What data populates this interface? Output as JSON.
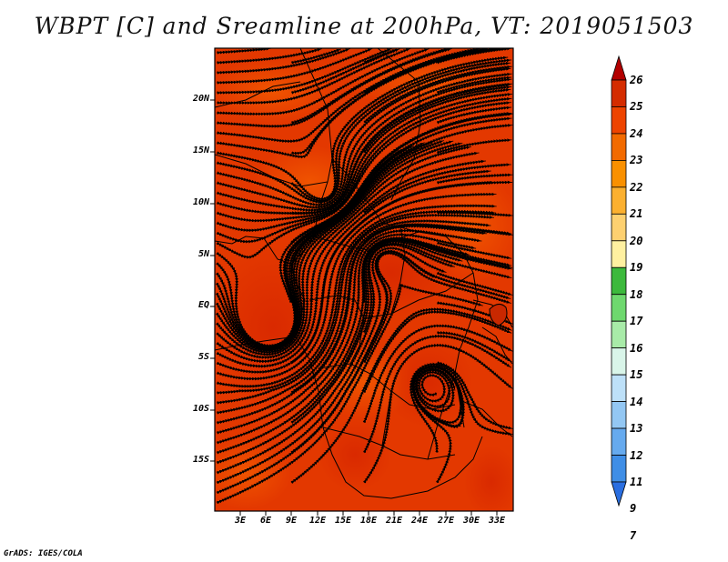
{
  "title": "WBPT [C] and Sreamline at 200hPa, VT: 2019051503",
  "credit": "GrADS: IGES/COLA",
  "lat_labels": [
    "20N",
    "15N",
    "10N",
    "5N",
    "EQ",
    "5S",
    "10S",
    "15S"
  ],
  "lon_labels": [
    "3E",
    "6E",
    "9E",
    "12E",
    "15E",
    "18E",
    "21E",
    "24E",
    "27E",
    "30E",
    "33E"
  ],
  "colorbar": {
    "labels": [
      "26",
      "25",
      "24",
      "23",
      "22",
      "21",
      "20",
      "19",
      "18",
      "17",
      "16",
      "15",
      "14",
      "13",
      "12",
      "11",
      "9",
      "7"
    ],
    "colors": [
      "#b30000",
      "#d42c00",
      "#ee4400",
      "#f26a00",
      "#f99000",
      "#fbb030",
      "#fdd070",
      "#fff0a0",
      "#3cb93c",
      "#6ed86e",
      "#a8eba8",
      "#d9f5e9",
      "#bde0f8",
      "#93c7f3",
      "#66aaee",
      "#3f8ee6",
      "#2a6ee0"
    ]
  }
}
